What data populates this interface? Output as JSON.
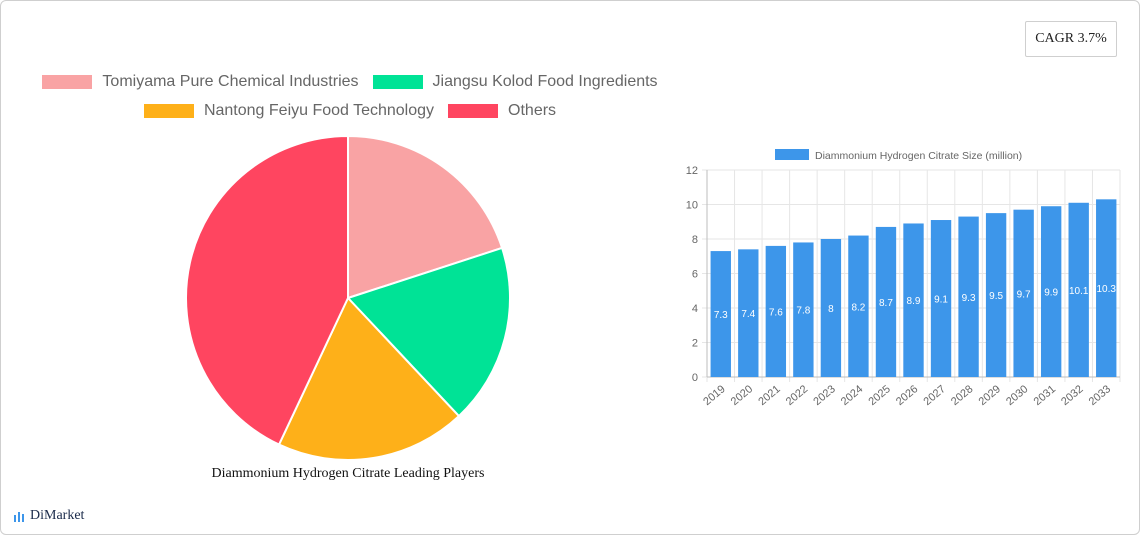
{
  "cagr": {
    "label": "CAGR 3.7%"
  },
  "brand": {
    "name": "DiMarket"
  },
  "pie": {
    "caption": "Diammonium Hydrogen Citrate Leading Players"
  },
  "chart_data": [
    {
      "type": "pie",
      "title": "Diammonium Hydrogen Citrate Leading Players",
      "labels": [
        "Tomiyama Pure Chemical Industries",
        "Jiangsu Kolod Food Ingredients",
        "Nantong Feiyu Food Technology",
        "Others"
      ],
      "values": [
        20,
        18,
        19,
        43
      ],
      "colors": [
        "#f9a3a4",
        "#00e396",
        "#feb019",
        "#ff4560"
      ],
      "legend": "top"
    },
    {
      "type": "bar",
      "series": [
        {
          "name": "Diammonium Hydrogen Citrate Size (million)",
          "values": [
            7.3,
            7.4,
            7.6,
            7.8,
            8,
            8.2,
            8.7,
            8.9,
            9.1,
            9.3,
            9.5,
            9.7,
            9.9,
            10.1,
            10.3
          ],
          "color": "#3d96ea"
        }
      ],
      "categories": [
        "2019",
        "2020",
        "2021",
        "2022",
        "2023",
        "2024",
        "2025",
        "2026",
        "2027",
        "2028",
        "2029",
        "2030",
        "2031",
        "2032",
        "2033"
      ],
      "ylim": [
        0,
        12
      ],
      "yticks": [
        "0",
        "2",
        "4",
        "6",
        "8",
        "10",
        "12"
      ],
      "grid": true,
      "legend": "top"
    }
  ]
}
